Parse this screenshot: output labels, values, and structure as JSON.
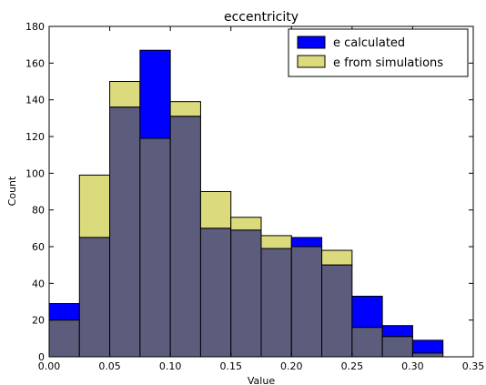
{
  "chart_data": {
    "type": "bar",
    "title": "eccentricity",
    "xlabel": "Value",
    "ylabel": "Count",
    "xlim": [
      0.0,
      0.35
    ],
    "ylim": [
      0,
      180
    ],
    "xticks": [
      "0.00",
      "0.05",
      "0.10",
      "0.15",
      "0.20",
      "0.25",
      "0.30",
      "0.35"
    ],
    "yticks": [
      "0",
      "20",
      "40",
      "60",
      "80",
      "100",
      "120",
      "140",
      "160",
      "180"
    ],
    "legend_position": "top-right",
    "bin_edges": [
      0.0,
      0.025,
      0.05,
      0.075,
      0.1,
      0.125,
      0.15,
      0.175,
      0.2,
      0.225,
      0.25,
      0.275,
      0.3,
      0.325
    ],
    "series": [
      {
        "name": "e calculated",
        "color": "#0000ff",
        "values": [
          29,
          65,
          136,
          167,
          131,
          70,
          69,
          59,
          65,
          50,
          33,
          17,
          9
        ]
      },
      {
        "name": "e from simulations",
        "color": "#dbdb7d",
        "values": [
          20,
          99,
          150,
          119,
          139,
          90,
          76,
          66,
          60,
          58,
          16,
          11,
          2
        ]
      }
    ],
    "overlap_color": "#5c5c7c"
  }
}
